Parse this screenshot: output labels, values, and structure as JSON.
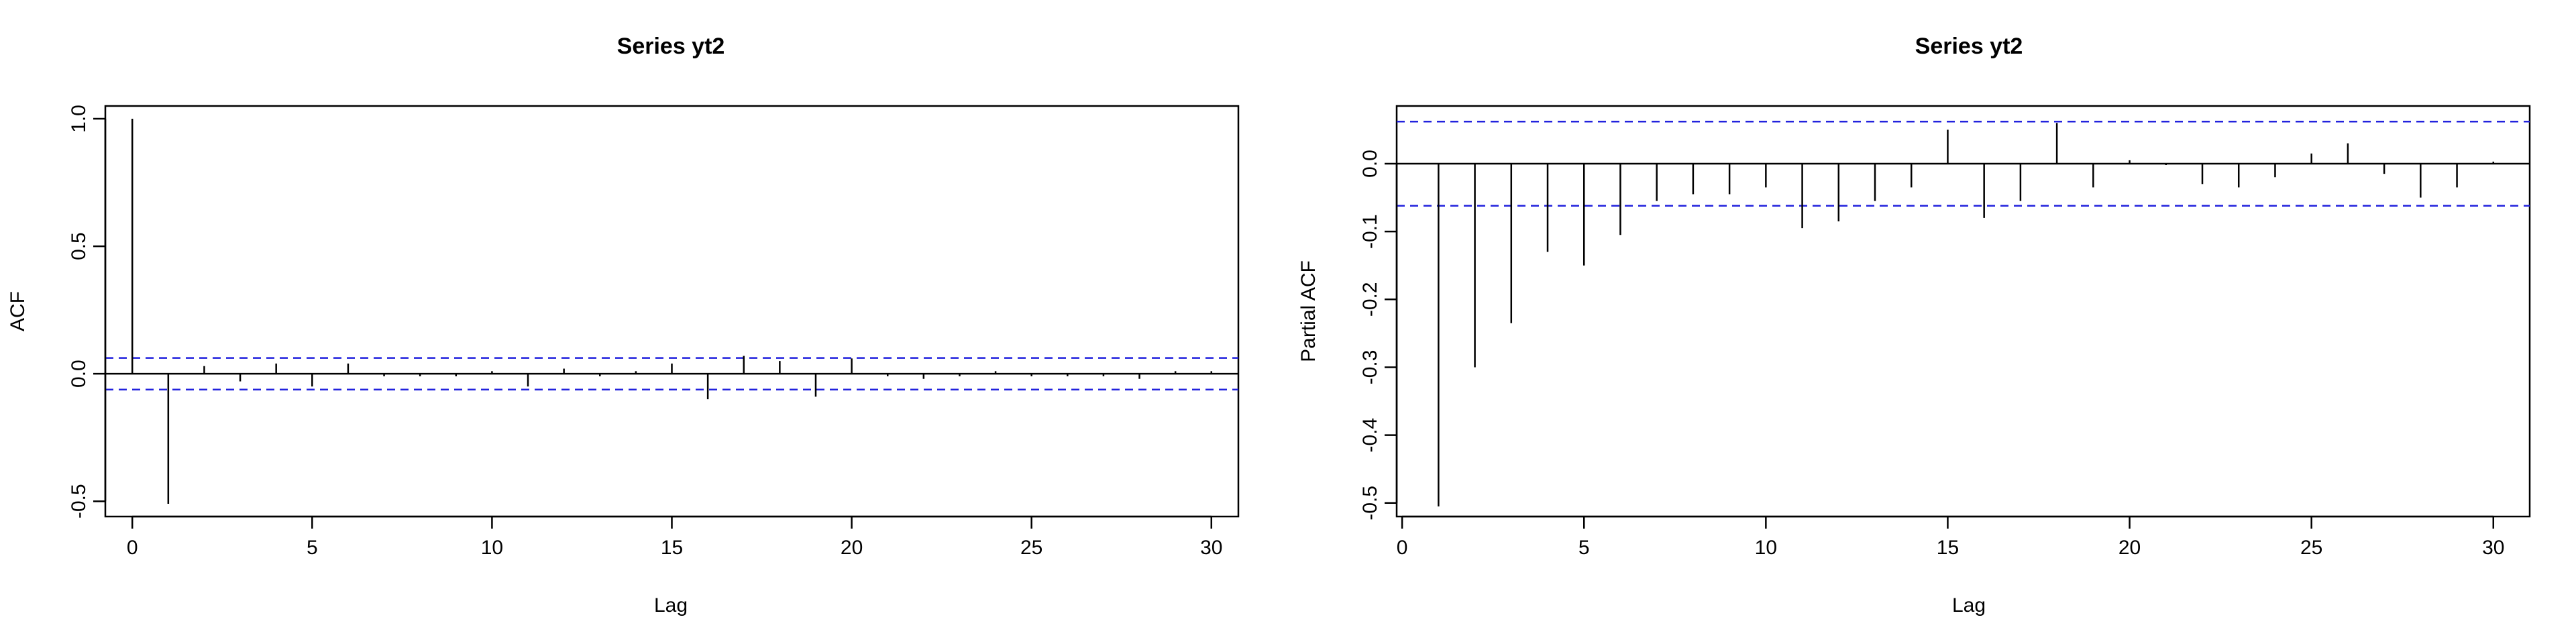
{
  "chart_data": [
    {
      "type": "bar",
      "subtype": "acf",
      "title": "Series  yt2",
      "xlabel": "Lag",
      "ylabel": "ACF",
      "xlim": [
        -0.75,
        30.75
      ],
      "ylim": [
        -0.56,
        1.05
      ],
      "xticks": [
        0,
        5,
        10,
        15,
        20,
        25,
        30
      ],
      "xtick_labels": [
        "0",
        "5",
        "10",
        "15",
        "20",
        "25",
        "30"
      ],
      "yticks": [
        -0.5,
        0.0,
        0.5,
        1.0
      ],
      "ytick_labels": [
        "-0.5",
        "0.0",
        "0.5",
        "1.0"
      ],
      "ci": 0.062,
      "x": [
        0,
        1,
        2,
        3,
        4,
        5,
        6,
        7,
        8,
        9,
        10,
        11,
        12,
        13,
        14,
        15,
        16,
        17,
        18,
        19,
        20,
        21,
        22,
        23,
        24,
        25,
        26,
        27,
        28,
        29,
        30
      ],
      "values": [
        1.0,
        -0.51,
        0.03,
        -0.03,
        0.04,
        -0.05,
        0.04,
        -0.01,
        -0.01,
        -0.01,
        0.01,
        -0.05,
        0.02,
        -0.01,
        0.01,
        0.04,
        -0.1,
        0.07,
        0.05,
        -0.09,
        0.06,
        -0.01,
        -0.02,
        -0.01,
        0.01,
        -0.01,
        -0.01,
        -0.01,
        -0.02,
        0.01,
        0.01
      ]
    },
    {
      "type": "bar",
      "subtype": "pacf",
      "title": "Series  yt2",
      "xlabel": "Lag",
      "ylabel": "Partial ACF",
      "xlim": [
        -0.15,
        31.0
      ],
      "ylim": [
        -0.52,
        0.085
      ],
      "xticks": [
        0,
        5,
        10,
        15,
        20,
        25,
        30
      ],
      "xtick_labels": [
        "0",
        "5",
        "10",
        "15",
        "20",
        "25",
        "30"
      ],
      "yticks": [
        -0.5,
        -0.4,
        -0.3,
        -0.2,
        -0.1,
        0.0
      ],
      "ytick_labels": [
        "-0.5",
        "-0.4",
        "-0.3",
        "-0.2",
        "-0.1",
        "0.0"
      ],
      "ci": 0.062,
      "x": [
        1,
        2,
        3,
        4,
        5,
        6,
        7,
        8,
        9,
        10,
        11,
        12,
        13,
        14,
        15,
        16,
        17,
        18,
        19,
        20,
        21,
        22,
        23,
        24,
        25,
        26,
        27,
        28,
        29,
        30
      ],
      "values": [
        -0.505,
        -0.3,
        -0.235,
        -0.13,
        -0.15,
        -0.105,
        -0.055,
        -0.045,
        -0.045,
        -0.035,
        -0.095,
        -0.085,
        -0.055,
        -0.035,
        0.05,
        -0.08,
        -0.055,
        0.06,
        -0.035,
        0.005,
        -0.002,
        -0.03,
        -0.035,
        -0.02,
        0.015,
        0.03,
        -0.015,
        -0.05,
        -0.035,
        0.003
      ]
    }
  ]
}
